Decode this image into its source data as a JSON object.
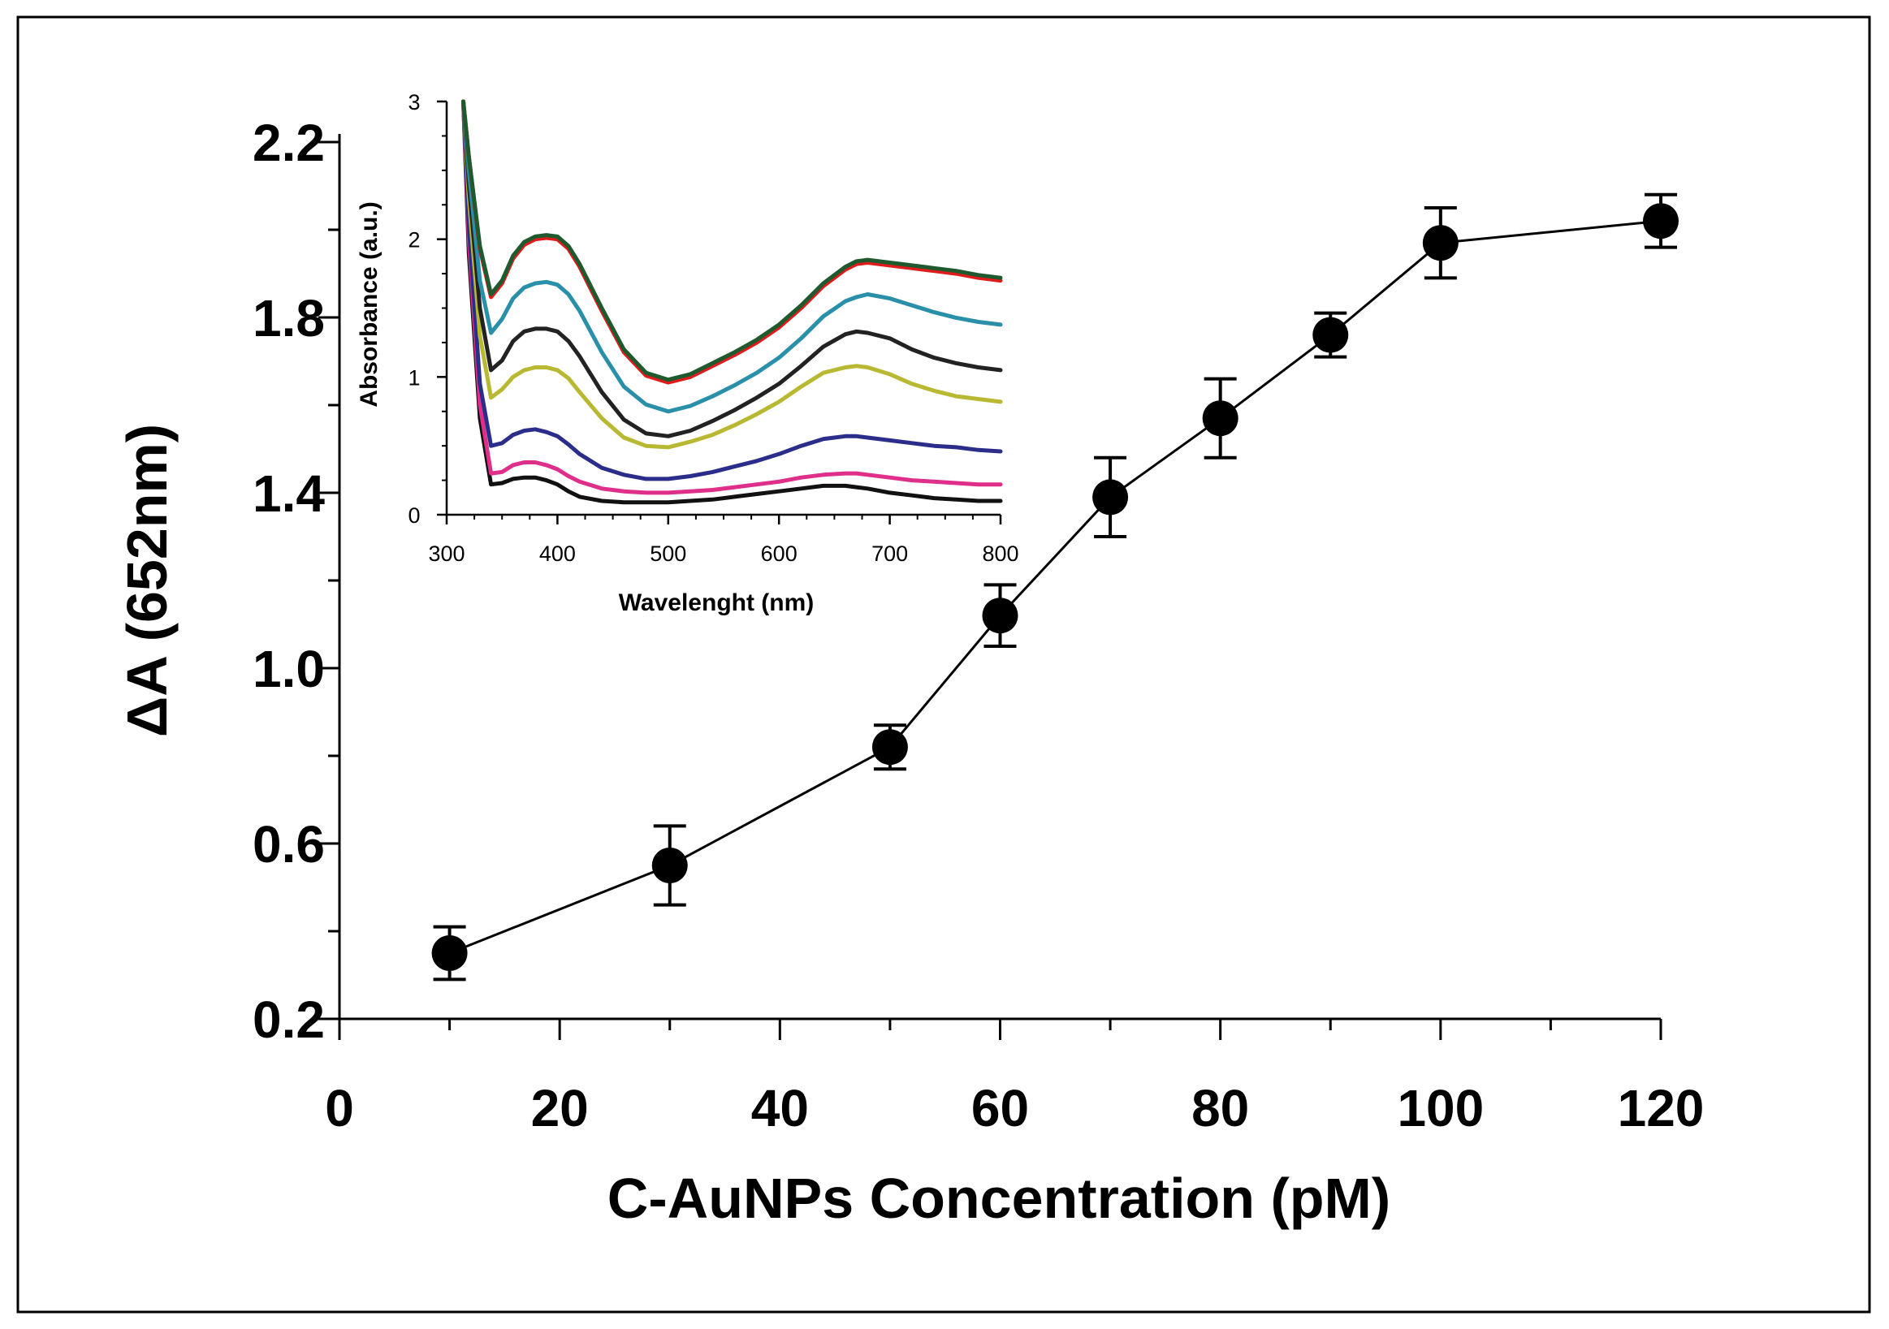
{
  "chart_data": [
    {
      "type": "line",
      "name": "main",
      "xlabel": "C-AuNPs Concentration (pM)",
      "ylabel": "ΔA (652nm)",
      "xlim": [
        0,
        120
      ],
      "ylim": [
        0.2,
        2.2
      ],
      "xticks": [
        0,
        20,
        40,
        60,
        80,
        100,
        120
      ],
      "yticks": [
        0.2,
        0.6,
        1.0,
        1.4,
        1.8,
        2.2
      ],
      "ytick_labels": [
        "0.2",
        "0.6",
        "1.0",
        "1.4",
        "1.8",
        "2.2"
      ],
      "x": [
        10,
        30,
        50,
        60,
        70,
        80,
        90,
        100,
        120
      ],
      "y": [
        0.35,
        0.55,
        0.82,
        1.12,
        1.39,
        1.57,
        1.76,
        1.97,
        2.02
      ],
      "yerr": [
        0.06,
        0.09,
        0.05,
        0.07,
        0.09,
        0.09,
        0.05,
        0.08,
        0.06
      ],
      "marker": "filled-circle",
      "color": "#000000"
    },
    {
      "type": "line",
      "name": "inset",
      "xlabel": "Wavelenght (nm)",
      "ylabel": "Absorbance (a.u.)",
      "xlim": [
        300,
        800
      ],
      "ylim": [
        0,
        3
      ],
      "xticks": [
        300,
        400,
        500,
        600,
        700,
        800
      ],
      "yticks": [
        0,
        1,
        2,
        3
      ],
      "x": [
        315,
        320,
        330,
        340,
        350,
        360,
        370,
        380,
        390,
        400,
        410,
        420,
        440,
        460,
        480,
        500,
        520,
        540,
        560,
        580,
        600,
        620,
        640,
        660,
        670,
        680,
        700,
        720,
        740,
        760,
        780,
        800
      ],
      "series": [
        {
          "name": "dark-green",
          "color": "#1f5a2e",
          "values": [
            3.0,
            2.6,
            1.95,
            1.6,
            1.7,
            1.88,
            1.98,
            2.02,
            2.03,
            2.02,
            1.95,
            1.82,
            1.5,
            1.2,
            1.03,
            0.98,
            1.02,
            1.1,
            1.18,
            1.27,
            1.38,
            1.52,
            1.68,
            1.8,
            1.84,
            1.85,
            1.83,
            1.81,
            1.79,
            1.77,
            1.74,
            1.72
          ]
        },
        {
          "name": "red",
          "color": "#e01b1b",
          "values": [
            3.0,
            2.6,
            1.93,
            1.58,
            1.68,
            1.86,
            1.96,
            2.0,
            2.01,
            2.0,
            1.93,
            1.8,
            1.48,
            1.18,
            1.01,
            0.96,
            1.0,
            1.08,
            1.16,
            1.25,
            1.36,
            1.5,
            1.66,
            1.78,
            1.82,
            1.83,
            1.81,
            1.79,
            1.77,
            1.75,
            1.72,
            1.7
          ]
        },
        {
          "name": "teal",
          "color": "#2a8fa8",
          "values": [
            3.0,
            2.5,
            1.7,
            1.32,
            1.42,
            1.57,
            1.65,
            1.68,
            1.69,
            1.67,
            1.6,
            1.48,
            1.18,
            0.93,
            0.8,
            0.75,
            0.79,
            0.86,
            0.94,
            1.03,
            1.14,
            1.28,
            1.44,
            1.55,
            1.58,
            1.6,
            1.57,
            1.52,
            1.47,
            1.43,
            1.4,
            1.38
          ]
        },
        {
          "name": "black",
          "color": "#222222",
          "values": [
            3.0,
            2.4,
            1.5,
            1.05,
            1.12,
            1.26,
            1.33,
            1.35,
            1.35,
            1.33,
            1.26,
            1.15,
            0.89,
            0.69,
            0.59,
            0.57,
            0.61,
            0.68,
            0.76,
            0.85,
            0.95,
            1.08,
            1.22,
            1.31,
            1.33,
            1.32,
            1.28,
            1.2,
            1.14,
            1.1,
            1.07,
            1.05
          ]
        },
        {
          "name": "olive",
          "color": "#b8b832",
          "values": [
            3.0,
            2.3,
            1.3,
            0.85,
            0.91,
            1.0,
            1.05,
            1.07,
            1.07,
            1.05,
            0.99,
            0.89,
            0.7,
            0.56,
            0.5,
            0.49,
            0.53,
            0.58,
            0.65,
            0.73,
            0.82,
            0.93,
            1.03,
            1.07,
            1.08,
            1.07,
            1.02,
            0.95,
            0.9,
            0.86,
            0.84,
            0.82
          ]
        },
        {
          "name": "navy",
          "color": "#2b2d8a",
          "values": [
            3.0,
            2.1,
            0.95,
            0.5,
            0.52,
            0.58,
            0.61,
            0.62,
            0.6,
            0.57,
            0.51,
            0.44,
            0.34,
            0.29,
            0.26,
            0.26,
            0.28,
            0.31,
            0.35,
            0.39,
            0.44,
            0.5,
            0.55,
            0.57,
            0.57,
            0.56,
            0.54,
            0.52,
            0.5,
            0.49,
            0.47,
            0.46
          ]
        },
        {
          "name": "pink",
          "color": "#e02f8a",
          "values": [
            3.0,
            2.0,
            0.8,
            0.3,
            0.31,
            0.36,
            0.38,
            0.38,
            0.36,
            0.33,
            0.28,
            0.24,
            0.19,
            0.17,
            0.16,
            0.16,
            0.17,
            0.18,
            0.2,
            0.22,
            0.24,
            0.27,
            0.29,
            0.3,
            0.3,
            0.29,
            0.27,
            0.25,
            0.24,
            0.23,
            0.22,
            0.22
          ]
        },
        {
          "name": "black-bottom",
          "color": "#111111",
          "values": [
            3.0,
            1.9,
            0.7,
            0.22,
            0.23,
            0.26,
            0.27,
            0.27,
            0.25,
            0.22,
            0.17,
            0.13,
            0.1,
            0.09,
            0.09,
            0.09,
            0.1,
            0.11,
            0.13,
            0.15,
            0.17,
            0.19,
            0.21,
            0.21,
            0.2,
            0.19,
            0.16,
            0.14,
            0.12,
            0.11,
            0.1,
            0.1
          ]
        }
      ]
    }
  ]
}
